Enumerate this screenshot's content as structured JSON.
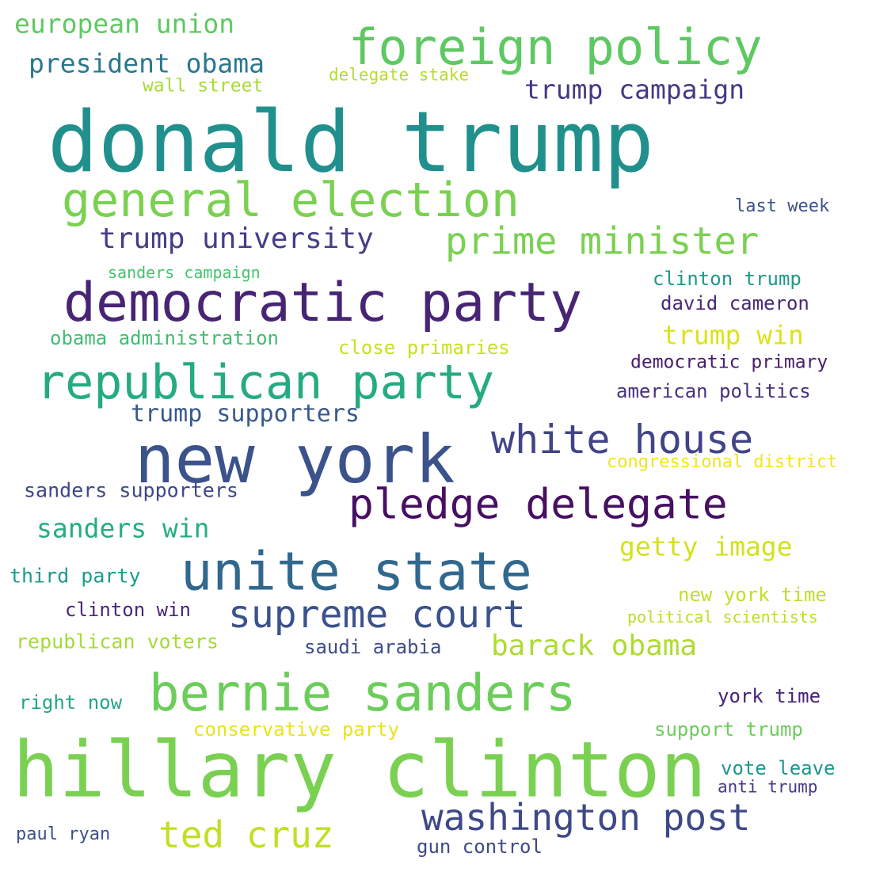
{
  "words": [
    {
      "text": "donald trump",
      "color": "#21908d"
    },
    {
      "text": "hillary clinton",
      "color": "#7ad151"
    },
    {
      "text": "foreign policy",
      "color": "#5ec962"
    },
    {
      "text": "new york",
      "color": "#3b528b"
    },
    {
      "text": "democratic party",
      "color": "#482475"
    },
    {
      "text": "general election",
      "color": "#7ad151"
    },
    {
      "text": "unite state",
      "color": "#31688e"
    },
    {
      "text": "republican party",
      "color": "#25ab82"
    },
    {
      "text": "bernie sanders",
      "color": "#6ccd5a"
    },
    {
      "text": "pledge delegate",
      "color": "#471063"
    },
    {
      "text": "white house",
      "color": "#414487"
    },
    {
      "text": "prime minister",
      "color": "#7ad151"
    },
    {
      "text": "supreme court",
      "color": "#3b528b"
    },
    {
      "text": "washington post",
      "color": "#3e4989"
    },
    {
      "text": "ted cruz",
      "color": "#c2df23"
    },
    {
      "text": "trump university",
      "color": "#433e85"
    },
    {
      "text": "barack obama",
      "color": "#addc30"
    },
    {
      "text": "trump campaign",
      "color": "#443983"
    },
    {
      "text": "president obama",
      "color": "#2a788e"
    },
    {
      "text": "european union",
      "color": "#5ec962"
    },
    {
      "text": "sanders win",
      "color": "#26ad81"
    },
    {
      "text": "getty image",
      "color": "#d2e21b"
    },
    {
      "text": "trump win",
      "color": "#dde318"
    },
    {
      "text": "trump supporters",
      "color": "#38598c"
    },
    {
      "text": "sanders supporters",
      "color": "#3f4788"
    },
    {
      "text": "clinton trump",
      "color": "#1f988b"
    },
    {
      "text": "david cameron",
      "color": "#482878"
    },
    {
      "text": "obama administration",
      "color": "#40bd72"
    },
    {
      "text": "close primaries",
      "color": "#c8e020"
    },
    {
      "text": "democratic primary",
      "color": "#481b6d"
    },
    {
      "text": "american politics",
      "color": "#46327e"
    },
    {
      "text": "congressional district",
      "color": "#f1e51d"
    },
    {
      "text": "third party",
      "color": "#1e9c89"
    },
    {
      "text": "clinton win",
      "color": "#482878"
    },
    {
      "text": "new york time",
      "color": "#c0df25"
    },
    {
      "text": "political scientists",
      "color": "#bade28"
    },
    {
      "text": "republican voters",
      "color": "#a5db36"
    },
    {
      "text": "saudi arabia",
      "color": "#3e4c8a"
    },
    {
      "text": "right now",
      "color": "#21a685"
    },
    {
      "text": "york time",
      "color": "#482173"
    },
    {
      "text": "conservative party",
      "color": "#e7e419"
    },
    {
      "text": "support trump",
      "color": "#6ccd5a"
    },
    {
      "text": "vote leave",
      "color": "#1f958b"
    },
    {
      "text": "anti trump",
      "color": "#443a83"
    },
    {
      "text": "paul ryan",
      "color": "#3b528b"
    },
    {
      "text": "gun control",
      "color": "#3e4a89"
    },
    {
      "text": "wall street",
      "color": "#a8db34"
    },
    {
      "text": "delegate stake",
      "color": "#b5de2b"
    },
    {
      "text": "last week",
      "color": "#3b528b"
    },
    {
      "text": "sanders campaign",
      "color": "#48c16e"
    }
  ]
}
